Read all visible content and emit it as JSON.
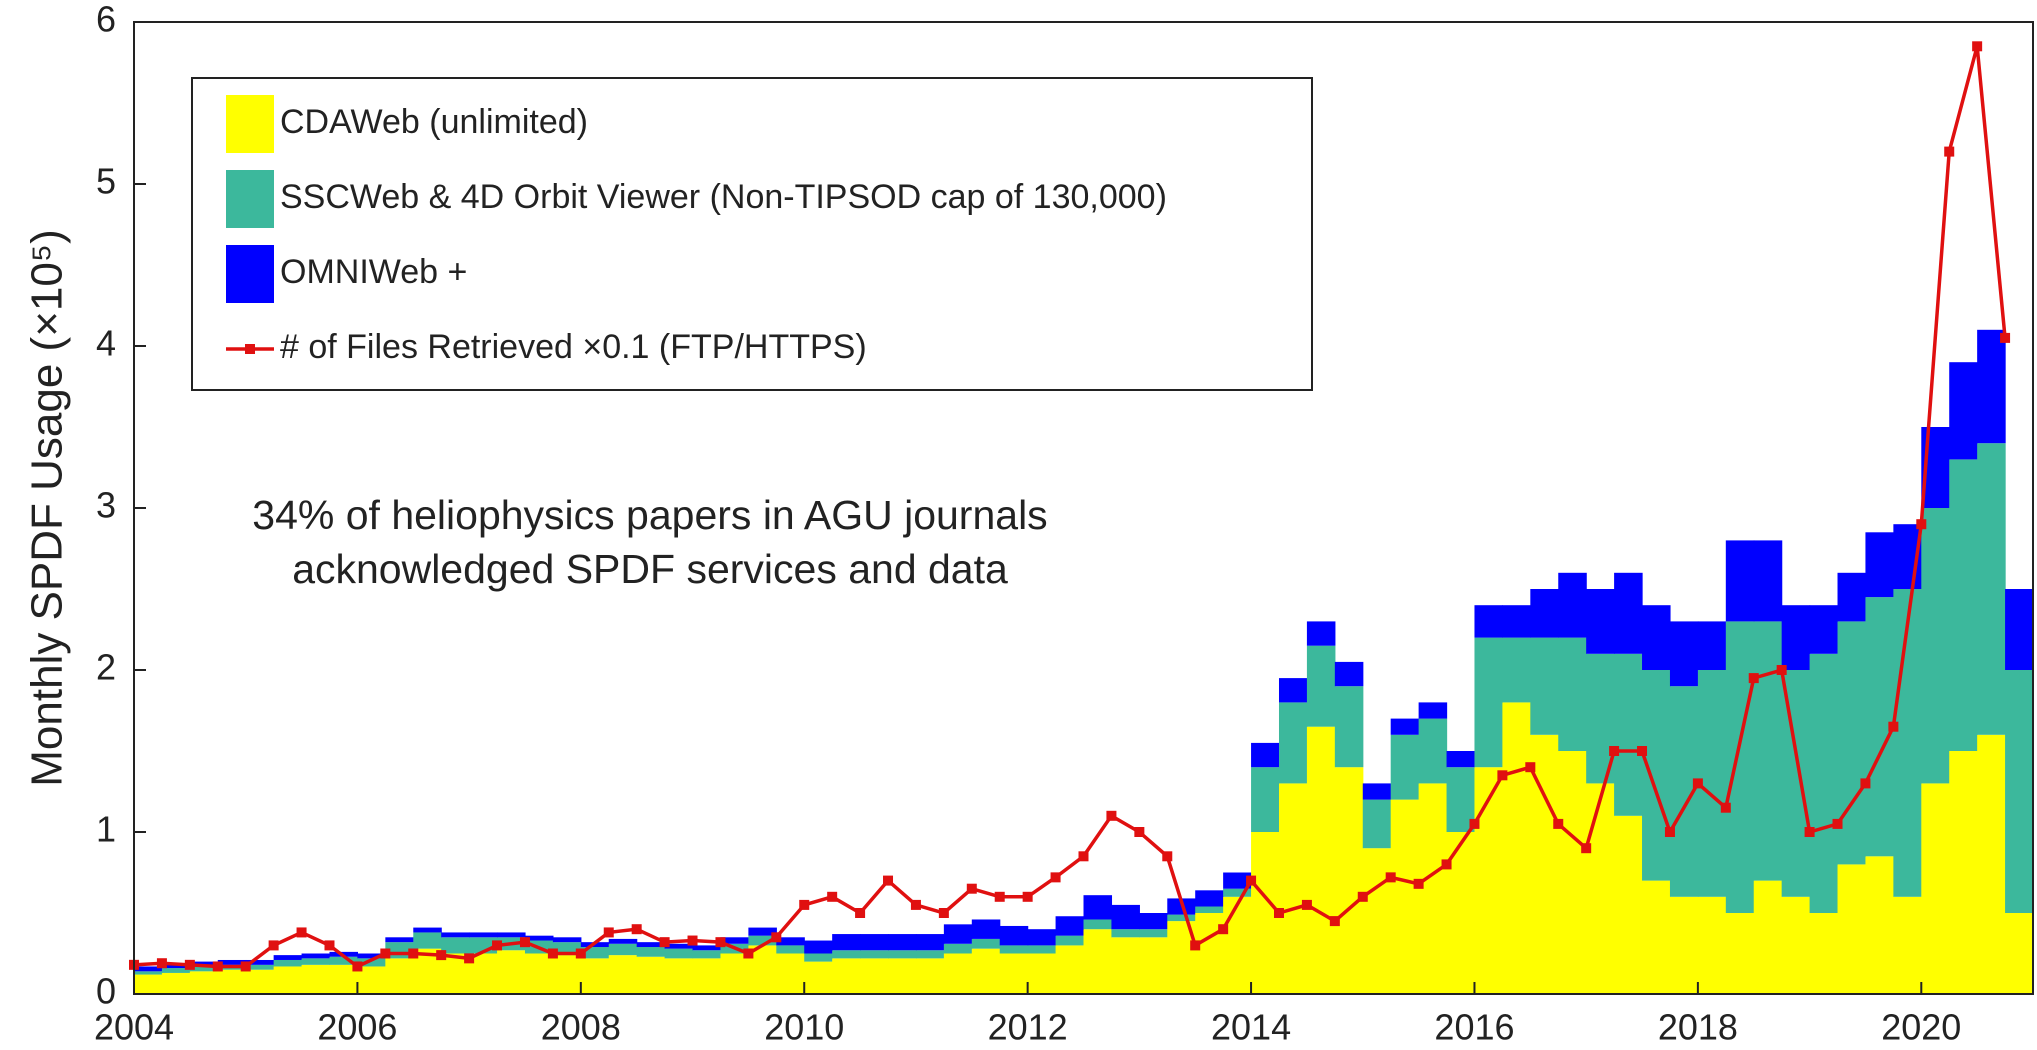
{
  "chart_data": {
    "type": "stacked_bar_line",
    "ylabel": "Monthly  SPDF  Usage  (×10⁵)",
    "annotation": [
      "34% of heliophysics papers in AGU journals",
      "acknowledged SPDF services and data"
    ],
    "legend": "upper left",
    "xlim": [
      2004,
      2021
    ],
    "xticks": [
      2004,
      2006,
      2008,
      2010,
      2012,
      2014,
      2016,
      2018,
      2020
    ],
    "ylim": [
      0,
      6
    ],
    "yticks": [
      0,
      1,
      2,
      3,
      4,
      5,
      6
    ],
    "x": [
      2004,
      2004.25,
      2004.5,
      2004.75,
      2005,
      2005.25,
      2005.5,
      2005.75,
      2006,
      2006.25,
      2006.5,
      2006.75,
      2007,
      2007.25,
      2007.5,
      2007.75,
      2008,
      2008.25,
      2008.5,
      2008.75,
      2009,
      2009.25,
      2009.5,
      2009.75,
      2010,
      2010.25,
      2010.5,
      2010.75,
      2011,
      2011.25,
      2011.5,
      2011.75,
      2012,
      2012.25,
      2012.5,
      2012.75,
      2013,
      2013.25,
      2013.5,
      2013.75,
      2014,
      2014.25,
      2014.5,
      2014.75,
      2015,
      2015.25,
      2015.5,
      2015.75,
      2016,
      2016.25,
      2016.5,
      2016.75,
      2017,
      2017.25,
      2017.5,
      2017.75,
      2018,
      2018.25,
      2018.5,
      2018.75,
      2019,
      2019.25,
      2019.5,
      2019.75,
      2020,
      2020.25,
      2020.5,
      2020.75
    ],
    "series": [
      {
        "name": "CDAWeb (unlimited)",
        "color": "#ffff00",
        "kind": "bar",
        "values": [
          0.12,
          0.13,
          0.14,
          0.15,
          0.15,
          0.17,
          0.18,
          0.18,
          0.17,
          0.22,
          0.28,
          0.25,
          0.25,
          0.27,
          0.25,
          0.24,
          0.22,
          0.24,
          0.23,
          0.22,
          0.22,
          0.25,
          0.3,
          0.25,
          0.2,
          0.22,
          0.22,
          0.22,
          0.22,
          0.25,
          0.28,
          0.25,
          0.25,
          0.3,
          0.4,
          0.35,
          0.35,
          0.45,
          0.5,
          0.6,
          1.0,
          1.3,
          1.65,
          1.4,
          0.9,
          1.2,
          1.3,
          1.0,
          1.4,
          1.8,
          1.6,
          1.5,
          1.3,
          1.1,
          0.7,
          0.6,
          0.6,
          0.5,
          0.7,
          0.6,
          0.5,
          0.8,
          0.85,
          0.6,
          1.3,
          1.5,
          1.6,
          0.5
        ]
      },
      {
        "name": "SSCWeb & 4D Orbit Viewer (Non-TIPSOD cap of 130,000)",
        "color": "#3cb89c",
        "kind": "bar",
        "values": [
          0.02,
          0.03,
          0.03,
          0.03,
          0.03,
          0.04,
          0.04,
          0.05,
          0.05,
          0.1,
          0.1,
          0.1,
          0.1,
          0.08,
          0.08,
          0.08,
          0.07,
          0.07,
          0.06,
          0.06,
          0.05,
          0.06,
          0.06,
          0.05,
          0.05,
          0.05,
          0.05,
          0.05,
          0.05,
          0.06,
          0.06,
          0.05,
          0.05,
          0.06,
          0.06,
          0.05,
          0.05,
          0.04,
          0.04,
          0.05,
          0.4,
          0.5,
          0.5,
          0.5,
          0.3,
          0.4,
          0.4,
          0.4,
          0.8,
          0.4,
          0.6,
          0.7,
          0.8,
          1.0,
          1.3,
          1.3,
          1.4,
          1.8,
          1.6,
          1.4,
          1.6,
          1.5,
          1.6,
          1.9,
          1.7,
          1.8,
          1.8,
          1.5
        ]
      },
      {
        "name": "OMNIWeb +",
        "color": "#0000ff",
        "kind": "bar",
        "values": [
          0.03,
          0.03,
          0.03,
          0.03,
          0.03,
          0.03,
          0.03,
          0.03,
          0.03,
          0.03,
          0.03,
          0.03,
          0.03,
          0.03,
          0.03,
          0.03,
          0.03,
          0.03,
          0.03,
          0.03,
          0.03,
          0.04,
          0.05,
          0.05,
          0.08,
          0.1,
          0.1,
          0.1,
          0.1,
          0.12,
          0.12,
          0.12,
          0.1,
          0.12,
          0.15,
          0.15,
          0.1,
          0.1,
          0.1,
          0.1,
          0.15,
          0.15,
          0.15,
          0.15,
          0.1,
          0.1,
          0.1,
          0.1,
          0.2,
          0.2,
          0.3,
          0.4,
          0.4,
          0.5,
          0.4,
          0.4,
          0.3,
          0.5,
          0.5,
          0.4,
          0.3,
          0.3,
          0.4,
          0.4,
          0.5,
          0.6,
          0.7,
          0.5
        ]
      },
      {
        "name": "# of Files Retrieved ×0.1 (FTP/HTTPS)",
        "color": "#e01010",
        "kind": "line",
        "values": [
          0.18,
          0.19,
          0.18,
          0.17,
          0.17,
          0.3,
          0.38,
          0.3,
          0.17,
          0.25,
          0.25,
          0.24,
          0.22,
          0.3,
          0.32,
          0.25,
          0.25,
          0.38,
          0.4,
          0.32,
          0.33,
          0.32,
          0.25,
          0.35,
          0.55,
          0.6,
          0.5,
          0.7,
          0.55,
          0.5,
          0.65,
          0.6,
          0.6,
          0.72,
          0.85,
          1.1,
          1.0,
          0.85,
          0.3,
          0.4,
          0.7,
          0.5,
          0.55,
          0.45,
          0.6,
          0.72,
          0.68,
          0.8,
          1.05,
          1.35,
          1.4,
          1.05,
          0.9,
          1.5,
          1.5,
          1.0,
          1.3,
          1.15,
          1.95,
          2.0,
          1.0,
          1.05,
          1.3,
          1.65,
          2.9,
          5.2,
          5.85,
          4.05
        ]
      }
    ]
  }
}
